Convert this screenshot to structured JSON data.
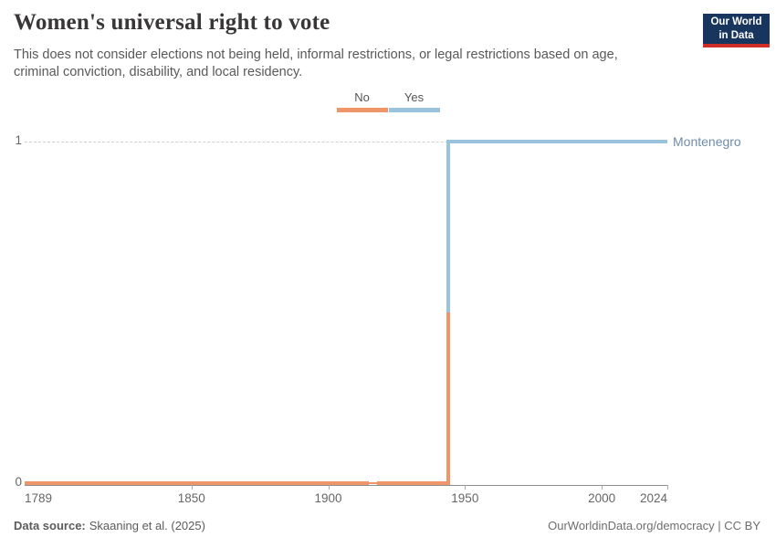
{
  "header": {
    "title": "Women's universal right to vote",
    "subtitle": "This does not consider elections not being held, informal restrictions, or legal restrictions based on age, criminal conviction, disability, and local residency.",
    "logo": {
      "line1": "Our World",
      "line2": "in Data",
      "bg_color": "#18355e",
      "accent_color": "#cf2e26"
    }
  },
  "legend": {
    "items": [
      {
        "label": "No",
        "color": "#F0946A"
      },
      {
        "label": "Yes",
        "color": "#9AC4DE"
      }
    ]
  },
  "chart_data": {
    "type": "line",
    "subtype": "step",
    "title": "Women's universal right to vote",
    "entity_label": "Montenegro",
    "entity_label_color": "#6E8CAA",
    "xlim": [
      1789,
      2024
    ],
    "ylim": [
      0,
      1
    ],
    "x_ticks": [
      1789,
      1850,
      1900,
      1950,
      2000,
      2024
    ],
    "y_ticks": [
      1,
      0
    ],
    "grid": "dashed gridline at y=1",
    "legend_position": "top-center",
    "value_labels": {
      "0": "No",
      "1": "Yes"
    },
    "value_colors": {
      "0": "#F0946A",
      "1": "#9AC4DE"
    },
    "series": [
      {
        "name": "Montenegro",
        "points": [
          {
            "year": 1789,
            "value": 0,
            "label": "No"
          },
          {
            "year": 1943,
            "value": 0,
            "label": "No"
          },
          {
            "year": 1944,
            "value": 1,
            "label": "Yes"
          },
          {
            "year": 2024,
            "value": 1,
            "label": "Yes"
          }
        ],
        "sparse_segment": {
          "from": 1915,
          "to": 1918
        }
      }
    ]
  },
  "footer": {
    "source_label": "Data source:",
    "source_value": "Skaaning et al. (2025)",
    "right_text": "OurWorldinData.org/democracy | CC BY"
  }
}
